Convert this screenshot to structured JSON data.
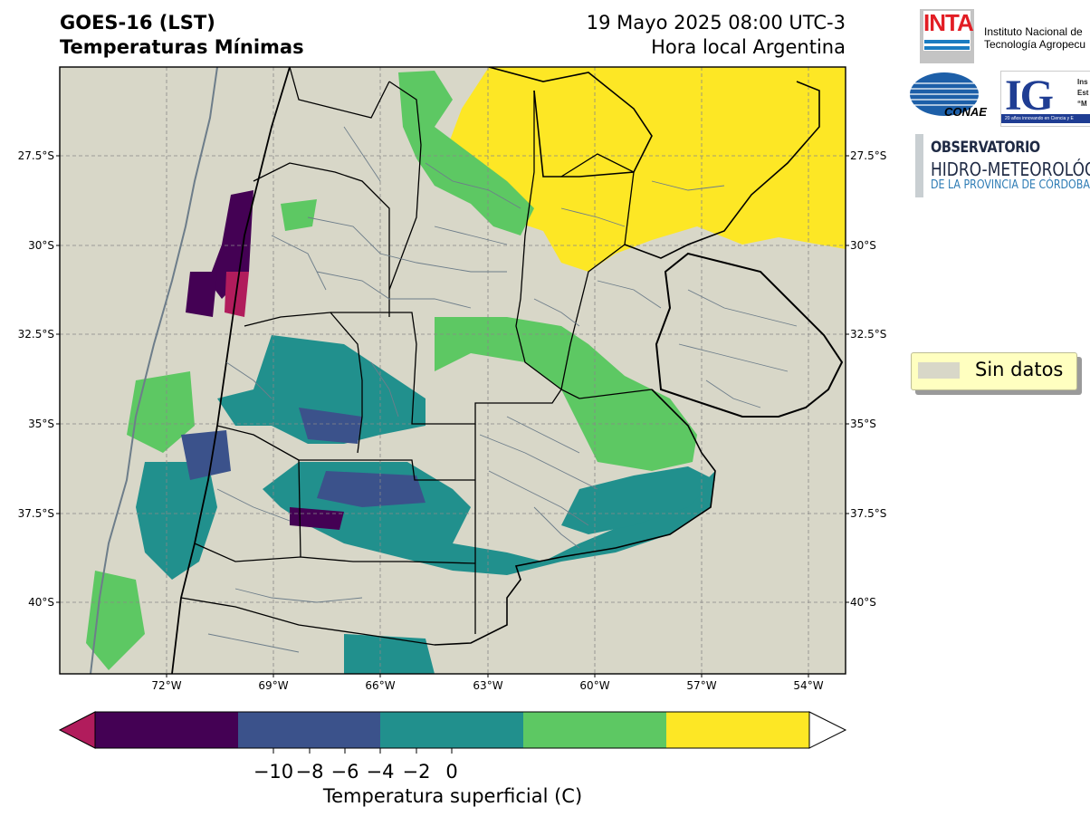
{
  "title": {
    "line1": "GOES-16 (LST)",
    "line2": "Temperaturas Mínimas",
    "date": "19 Mayo 2025 08:00 UTC-3",
    "timezone": "Hora local Argentina"
  },
  "map": {
    "lat_labels": [
      "27.5°S",
      "30°S",
      "32.5°S",
      "35°S",
      "37.5°S",
      "40°S"
    ],
    "lon_labels": [
      "72°W",
      "69°W",
      "66°W",
      "63°W",
      "60°W",
      "57°W",
      "54°W"
    ],
    "background_color": "#d8d7c8"
  },
  "legend": {
    "no_data_label": "Sin datos"
  },
  "colorbar": {
    "label": "Temperatura superficial (C)",
    "tick_labels": [
      "−10",
      "−8",
      "−6",
      "−4",
      "−2",
      "0"
    ],
    "colors": {
      "under": "#b11c5c",
      "lt_minus10": "#440154",
      "minus10_minus6": "#3b528b",
      "minus6_minus2": "#21908d",
      "minus2_2": "#5dc863",
      "2_6": "#fde725",
      "over": "#ffffff"
    }
  },
  "logos": {
    "inta": {
      "text": "INTA",
      "name_line1": "Instituto Nacional de",
      "name_line2": "Tecnología Agropecu"
    },
    "conae": {
      "text": "CONAE"
    },
    "ig": {
      "text": "IG",
      "side_line1": "Ins",
      "side_line2": "Est",
      "side_line3": "“M",
      "band": "20 años innovando en Ciencia y E"
    },
    "observatorio": {
      "line1": "OBSERVATORIO",
      "line2": "HIDRO-METEOROLÓG",
      "line3": "DE LA PROVINCIA DE CÓRDOBA"
    }
  }
}
